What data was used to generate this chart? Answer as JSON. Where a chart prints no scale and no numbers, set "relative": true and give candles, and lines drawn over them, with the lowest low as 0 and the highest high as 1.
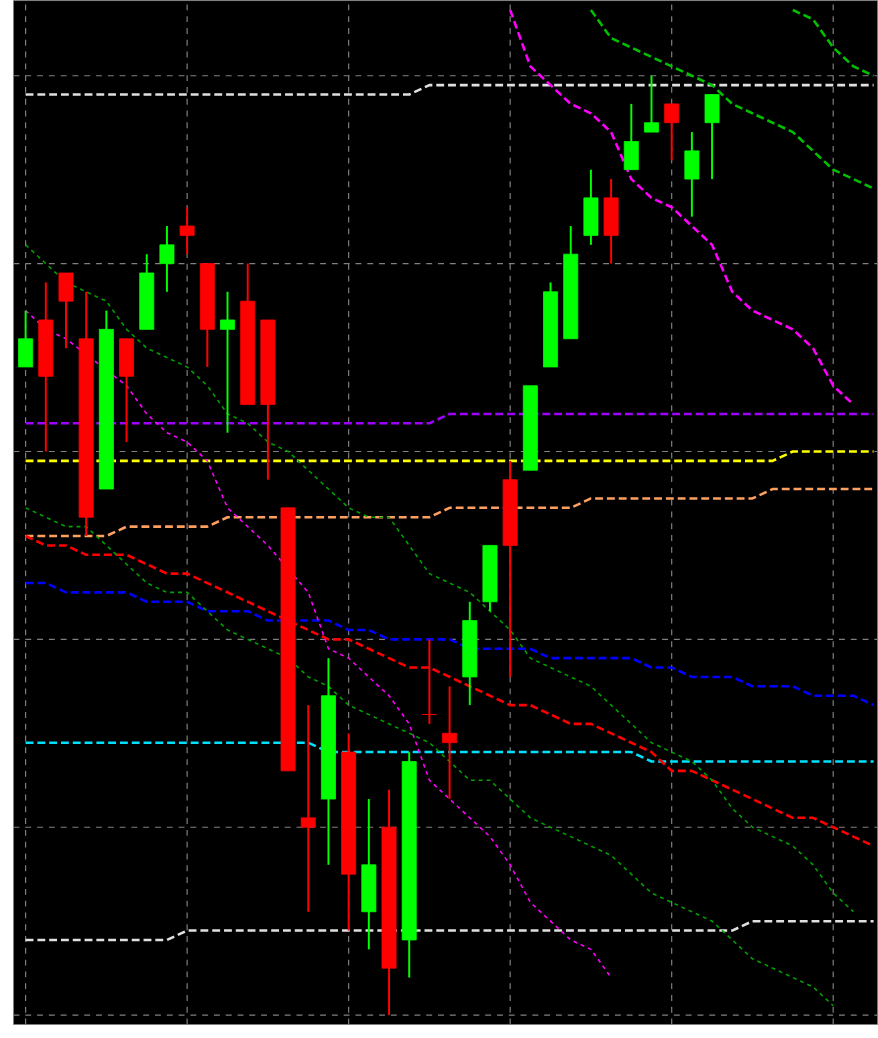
{
  "chart_data": {
    "type": "candlestick",
    "relative": true,
    "grid": true,
    "categories": [
      null,
      null,
      null,
      null,
      null,
      null,
      null,
      null,
      null,
      null,
      null,
      null,
      null,
      null,
      null,
      null,
      null,
      null,
      null,
      null,
      null,
      null,
      null,
      null,
      null,
      null,
      null,
      null,
      null,
      null,
      null,
      null,
      null,
      null,
      null,
      null,
      null,
      null,
      null,
      null,
      null,
      null,
      null
    ],
    "ohlc": [
      [
        0.69,
        0.75,
        0.69,
        0.72
      ],
      [
        0.74,
        0.78,
        0.6,
        0.68
      ],
      [
        0.79,
        0.79,
        0.71,
        0.76
      ],
      [
        0.72,
        0.77,
        0.51,
        0.53
      ],
      [
        0.56,
        0.75,
        0.56,
        0.73
      ],
      [
        0.72,
        0.72,
        0.61,
        0.68
      ],
      [
        0.73,
        0.81,
        0.73,
        0.79
      ],
      [
        0.8,
        0.84,
        0.77,
        0.82
      ],
      [
        0.84,
        0.86,
        0.81,
        0.83
      ],
      [
        0.8,
        0.8,
        0.69,
        0.73
      ],
      [
        0.73,
        0.77,
        0.62,
        0.74
      ],
      [
        0.76,
        0.8,
        0.65,
        0.65
      ],
      [
        0.74,
        0.74,
        0.57,
        0.65
      ],
      [
        0.54,
        0.54,
        0.26,
        0.26
      ],
      [
        0.21,
        0.33,
        0.11,
        0.2
      ],
      [
        0.23,
        0.38,
        0.16,
        0.34
      ],
      [
        0.28,
        0.3,
        0.09,
        0.15
      ],
      [
        0.11,
        0.23,
        0.07,
        0.16
      ],
      [
        0.2,
        0.24,
        0,
        0.05
      ],
      [
        0.08,
        0.28,
        0.04,
        0.27
      ],
      [
        0.32,
        0.4,
        0.31,
        0.32
      ],
      [
        0.3,
        0.35,
        0.23,
        0.29
      ],
      [
        0.36,
        0.44,
        0.33,
        0.42
      ],
      [
        0.44,
        0.5,
        0.43,
        0.5
      ],
      [
        0.57,
        0.59,
        0.36,
        0.5
      ],
      [
        0.58,
        0.67,
        0.58,
        0.67
      ],
      [
        0.69,
        0.78,
        0.69,
        0.77
      ],
      [
        0.72,
        0.84,
        0.72,
        0.81
      ],
      [
        0.83,
        0.9,
        0.82,
        0.87
      ],
      [
        0.87,
        0.89,
        0.8,
        0.83
      ],
      [
        0.9,
        0.97,
        0.9,
        0.93
      ],
      [
        0.94,
        1,
        0.94,
        0.95
      ],
      [
        0.97,
        0.97,
        0.91,
        0.95
      ],
      [
        0.89,
        0.94,
        0.85,
        0.92
      ],
      [
        0.95,
        0.98,
        0.89,
        0.98
      ],
      null,
      null,
      null,
      null,
      null,
      null,
      null,
      null
    ],
    "colors": [
      "#00ff00",
      "#ff0000",
      "#ff0000",
      "#ff0000",
      "#00ff00",
      "#ff0000",
      "#00ff00",
      "#00ff00",
      "#ff0000",
      "#ff0000",
      "#00ff00",
      "#ff0000",
      "#ff0000",
      "#ff0000",
      "#ff0000",
      "#00ff00",
      "#ff0000",
      "#00ff00",
      "#ff0000",
      "#00ff00",
      "#ff0000",
      "#ff0000",
      "#00ff00",
      "#00ff00",
      "#ff0000",
      "#00ff00",
      "#00ff00",
      "#00ff00",
      "#00ff00",
      "#ff0000",
      "#00ff00",
      "#00ff00",
      "#ff0000",
      "#00ff00",
      "#00ff00",
      null,
      null,
      null,
      null,
      null,
      null,
      null,
      null
    ],
    "series": [
      {
        "type": "line",
        "color": "#e0e0e0",
        "line_style": "dashed",
        "values": [
          0.98,
          0.98,
          0.98,
          0.98,
          0.98,
          0.98,
          0.98,
          0.98,
          0.98,
          0.98,
          0.98,
          0.98,
          0.98,
          0.98,
          0.98,
          0.98,
          0.98,
          0.98,
          0.98,
          0.98,
          0.99,
          0.99,
          0.99,
          0.99,
          0.99,
          0.99,
          0.99,
          0.99,
          0.99,
          0.99,
          0.99,
          0.99,
          0.99,
          0.99,
          0.99,
          0.99,
          0.99,
          0.99,
          0.99,
          0.99,
          0.99,
          0.99,
          0.99
        ]
      },
      {
        "type": "line",
        "color": "#a000ff",
        "line_style": "dashed",
        "values": [
          0.63,
          0.63,
          0.63,
          null,
          0.63,
          0.63,
          0.63,
          0.63,
          0.63,
          0.63,
          0.63,
          0.63,
          0.63,
          0.63,
          0.63,
          0.63,
          0.63,
          0.63,
          0.63,
          0.63,
          0.63,
          0.64,
          0.64,
          0.64,
          0.64,
          0.64,
          0.64,
          0.64,
          0.64,
          0.64,
          0.64,
          0.64,
          0.64,
          0.64,
          0.64,
          0.64,
          0.64,
          0.64,
          0.64,
          0.64,
          0.64,
          0.64,
          0.64
        ]
      },
      {
        "type": "line",
        "color": "#ffff00",
        "line_style": "dashed",
        "values": [
          0.59,
          0.59,
          0.59,
          null,
          0.59,
          0.59,
          0.59,
          0.59,
          0.59,
          0.59,
          0.59,
          0.59,
          0.59,
          0.59,
          0.59,
          0.59,
          0.59,
          0.59,
          0.59,
          0.59,
          0.59,
          0.59,
          0.59,
          0.59,
          0.59,
          0.59,
          0.59,
          0.59,
          0.59,
          0.59,
          0.59,
          0.59,
          0.59,
          0.59,
          0.59,
          0.59,
          0.59,
          0.59,
          0.6,
          0.6,
          0.6,
          0.6,
          0.6
        ]
      },
      {
        "type": "line",
        "color": "#ffa060",
        "line_style": "dashed",
        "values": [
          0.51,
          0.51,
          0.51,
          0.51,
          0.51,
          0.52,
          0.52,
          0.52,
          0.52,
          0.52,
          0.53,
          0.53,
          0.53,
          null,
          0.53,
          0.53,
          0.53,
          0.53,
          0.53,
          0.53,
          0.53,
          0.54,
          0.54,
          0.54,
          0.54,
          0.54,
          0.54,
          0.54,
          0.55,
          0.55,
          0.55,
          0.55,
          0.55,
          0.55,
          0.55,
          0.55,
          0.55,
          0.56,
          0.56,
          0.56,
          0.56,
          0.56,
          0.56
        ]
      },
      {
        "type": "line",
        "color": "#00e0ff",
        "line_style": "dashed",
        "values": [
          0.29,
          0.29,
          0.29,
          0.29,
          0.29,
          0.29,
          0.29,
          0.29,
          0.29,
          0.29,
          0.29,
          0.29,
          0.29,
          0.29,
          0.29,
          0.28,
          0.28,
          0.28,
          0.28,
          0.28,
          0.28,
          0.28,
          0.28,
          0.28,
          0.28,
          0.28,
          0.28,
          0.28,
          0.28,
          0.28,
          0.28,
          0.27,
          0.27,
          0.27,
          0.27,
          0.27,
          0.27,
          0.27,
          0.27,
          0.27,
          0.27,
          0.27,
          0.27
        ]
      },
      {
        "type": "line",
        "color": "#0000ff",
        "line_style": "dashed",
        "values": [
          0.46,
          0.46,
          0.45,
          0.45,
          0.45,
          0.45,
          0.44,
          0.44,
          0.44,
          0.43,
          0.43,
          0.43,
          0.42,
          0.42,
          0.42,
          0.42,
          0.41,
          0.41,
          0.4,
          0.4,
          0.4,
          0.4,
          0.39,
          0.39,
          0.39,
          0.39,
          0.38,
          0.38,
          0.38,
          0.38,
          0.38,
          0.37,
          0.37,
          0.36,
          0.36,
          0.36,
          0.35,
          0.35,
          0.35,
          0.34,
          0.34,
          0.34,
          0.33
        ]
      },
      {
        "type": "line",
        "color": "#ff0000",
        "line_style": "dashed",
        "values": [
          0.51,
          0.5,
          0.5,
          0.49,
          0.49,
          0.49,
          0.48,
          0.47,
          0.47,
          0.46,
          0.45,
          0.44,
          0.43,
          0.42,
          0.41,
          0.4,
          0.4,
          0.39,
          0.38,
          0.37,
          0.37,
          0.36,
          0.35,
          0.34,
          0.33,
          0.33,
          0.32,
          0.31,
          0.31,
          0.3,
          0.29,
          0.28,
          0.26,
          0.26,
          0.25,
          0.24,
          0.23,
          0.22,
          0.21,
          0.21,
          0.2,
          0.19,
          0.18
        ]
      },
      {
        "type": "line",
        "color": "#e0e0e0",
        "line_style": "dashed",
        "values": [
          0.08,
          0.08,
          0.08,
          0.08,
          0.08,
          0.08,
          0.08,
          0.08,
          0.09,
          0.09,
          0.09,
          0.09,
          0.09,
          0.09,
          0.09,
          0.09,
          0.09,
          0.09,
          0.09,
          0.09,
          0.09,
          0.09,
          0.09,
          0.09,
          0.09,
          0.09,
          0.09,
          0.09,
          0.09,
          0.09,
          0.09,
          0.09,
          0.09,
          0.09,
          0.09,
          0.09,
          0.1,
          0.1,
          0.1,
          0.1,
          0.1,
          0.1,
          0.1
        ]
      },
      {
        "type": "line",
        "color": "#ff00ff",
        "line_style": "dashed",
        "values": [
          null,
          null,
          null,
          null,
          null,
          null,
          null,
          null,
          null,
          null,
          null,
          null,
          null,
          null,
          null,
          null,
          null,
          null,
          null,
          null,
          null,
          null,
          null,
          null,
          1.07,
          1.01,
          0.99,
          0.97,
          0.96,
          0.94,
          0.89,
          0.87,
          0.86,
          0.84,
          0.82,
          0.77,
          0.75,
          0.74,
          0.73,
          0.71,
          0.67,
          0.65,
          null
        ]
      },
      {
        "type": "line",
        "color": "#ff00ff",
        "line_style": "dotted",
        "values": [
          0.75,
          0.73,
          0.72,
          null,
          null,
          0.67,
          0.64,
          0.62,
          0.61,
          0.59,
          0.54,
          0.52,
          0.5,
          null,
          0.45,
          0.39,
          0.38,
          0.36,
          0.34,
          0.31,
          0.25,
          0.23,
          0.21,
          0.19,
          0.16,
          0.12,
          0.1,
          0.08,
          0.07,
          0.04,
          null,
          null,
          null,
          null,
          null,
          null,
          null,
          null,
          null,
          null,
          null,
          null,
          null
        ]
      },
      {
        "type": "line",
        "color": "#00c000",
        "line_style": "dashed",
        "values": [
          null,
          null,
          null,
          null,
          null,
          null,
          null,
          null,
          null,
          null,
          null,
          null,
          null,
          null,
          null,
          null,
          null,
          null,
          null,
          null,
          null,
          null,
          null,
          null,
          null,
          null,
          null,
          null,
          1.07,
          1.04,
          1.03,
          1.02,
          1.01,
          1.0,
          0.99,
          0.97,
          0.96,
          0.95,
          0.94,
          0.92,
          0.9,
          0.89,
          0.88
        ]
      },
      {
        "type": "line",
        "color": "#00c000",
        "line_style": "dashed",
        "values": [
          null,
          null,
          null,
          null,
          null,
          null,
          null,
          null,
          null,
          null,
          null,
          null,
          null,
          null,
          null,
          null,
          null,
          null,
          null,
          null,
          null,
          null,
          null,
          null,
          null,
          null,
          null,
          null,
          null,
          null,
          null,
          null,
          null,
          null,
          null,
          null,
          null,
          null,
          1.07,
          1.06,
          1.03,
          1.01,
          1.0
        ]
      },
      {
        "type": "line",
        "color": "#00a000",
        "line_style": "dotted",
        "values": [
          0.82,
          0.8,
          0.78,
          0.77,
          0.76,
          0.73,
          0.71,
          0.7,
          0.69,
          0.67,
          0.64,
          0.63,
          0.61,
          0.6,
          0.58,
          0.56,
          0.54,
          0.53,
          0.53,
          0.5,
          0.47,
          0.46,
          0.45,
          0.43,
          0.41,
          0.38,
          0.37,
          0.36,
          0.35,
          0.33,
          0.31,
          0.29,
          0.28,
          0.27,
          0.25,
          0.22,
          0.2,
          0.19,
          0.18,
          0.16,
          0.13,
          0.11,
          null
        ]
      },
      {
        "type": "line",
        "color": "#00a000",
        "line_style": "dotted",
        "values": [
          0.54,
          0.53,
          0.52,
          0.52,
          0.5,
          0.48,
          0.46,
          0.45,
          0.45,
          0.43,
          0.41,
          0.4,
          0.39,
          0.38,
          0.36,
          0.35,
          0.33,
          0.32,
          0.31,
          0.3,
          0.29,
          0.27,
          0.25,
          0.25,
          0.23,
          0.21,
          0.2,
          0.19,
          0.18,
          0.17,
          0.15,
          0.13,
          0.12,
          0.11,
          0.1,
          0.08,
          0.06,
          0.05,
          0.04,
          0.03,
          0.01,
          null,
          null
        ]
      }
    ]
  }
}
